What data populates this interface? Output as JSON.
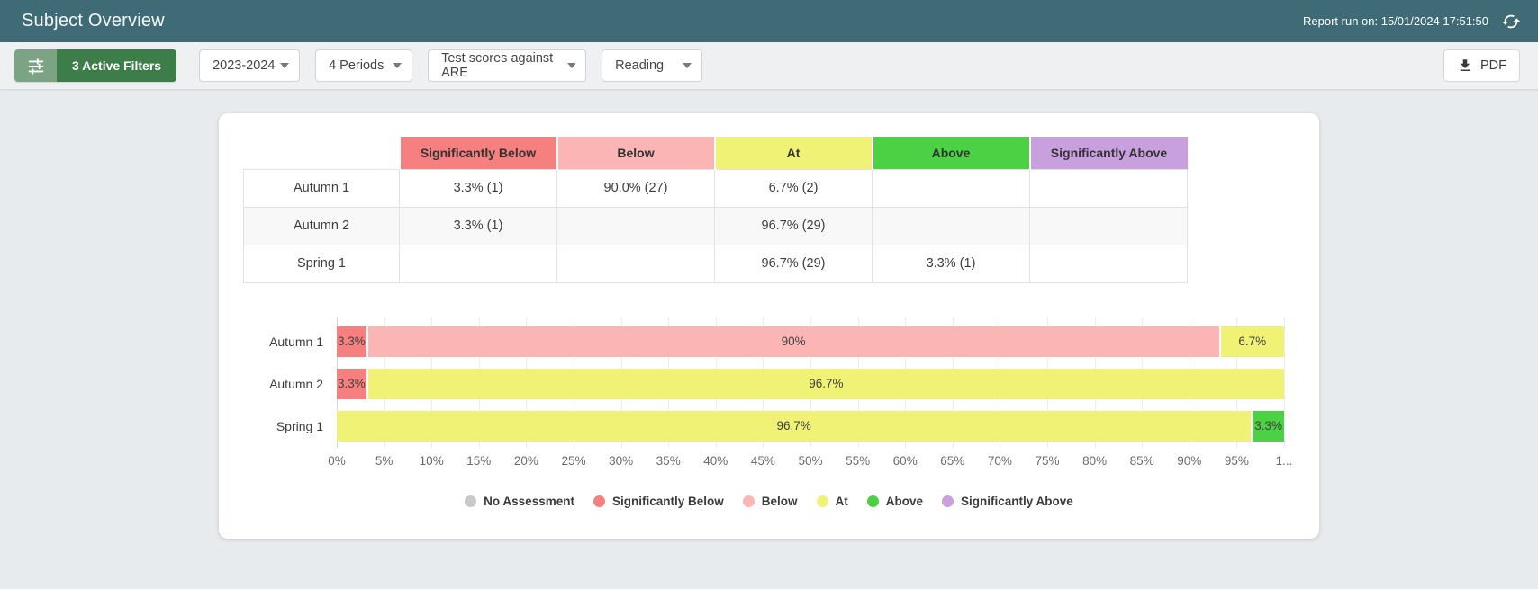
{
  "header": {
    "title": "Subject Overview",
    "report_run": "Report run on: 15/01/2024 17:51:50"
  },
  "toolbar": {
    "active_filters_label": "3 Active Filters",
    "dropdowns": [
      {
        "value": "2023-2024"
      },
      {
        "value": "4 Periods"
      },
      {
        "value": "Test scores against ARE"
      },
      {
        "value": "Reading"
      }
    ],
    "pdf_label": "PDF"
  },
  "colors": {
    "no_assessment": "#c9c9c9",
    "significantly_below": "#f67f7f",
    "below": "#fbb5b5",
    "at": "#f0f275",
    "above": "#4cd044",
    "significantly_above": "#c9a0de",
    "header_teal": "#3f6b76",
    "filter_green_dark": "#3c7d4a",
    "filter_green_light": "#7ba384"
  },
  "table": {
    "columns": [
      {
        "label": "Significantly Below",
        "key": "significantly_below"
      },
      {
        "label": "Below",
        "key": "below"
      },
      {
        "label": "At",
        "key": "at"
      },
      {
        "label": "Above",
        "key": "above"
      },
      {
        "label": "Significantly Above",
        "key": "significantly_above"
      }
    ],
    "rows": [
      {
        "label": "Autumn 1",
        "cells": [
          "3.3% (1)",
          "90.0% (27)",
          "6.7% (2)",
          "",
          ""
        ]
      },
      {
        "label": "Autumn 2",
        "cells": [
          "3.3% (1)",
          "",
          "96.7% (29)",
          "",
          ""
        ]
      },
      {
        "label": "Spring 1",
        "cells": [
          "",
          "",
          "96.7% (29)",
          "3.3% (1)",
          ""
        ]
      }
    ]
  },
  "chart_data": {
    "type": "bar",
    "orientation": "horizontal",
    "stacked": true,
    "title": "",
    "xlabel": "",
    "ylabel": "",
    "xlim": [
      0,
      100
    ],
    "grid": true,
    "legend_position": "bottom",
    "categories": [
      "Autumn 1",
      "Autumn 2",
      "Spring 1"
    ],
    "series": [
      {
        "name": "No Assessment",
        "key": "no_assessment",
        "values": [
          0,
          0,
          0
        ]
      },
      {
        "name": "Significantly Below",
        "key": "significantly_below",
        "values": [
          3.3,
          3.3,
          0
        ]
      },
      {
        "name": "Below",
        "key": "below",
        "values": [
          90.0,
          0,
          0
        ]
      },
      {
        "name": "At",
        "key": "at",
        "values": [
          6.7,
          96.7,
          96.7
        ]
      },
      {
        "name": "Above",
        "key": "above",
        "values": [
          0,
          0,
          3.3
        ]
      },
      {
        "name": "Significantly Above",
        "key": "significantly_above",
        "values": [
          0,
          0,
          0
        ]
      }
    ],
    "rows": [
      {
        "category": "Autumn 1",
        "segments": [
          {
            "key": "significantly_below",
            "value": 3.3,
            "label": "3.3%"
          },
          {
            "key": "below",
            "value": 90.0,
            "label": "90%"
          },
          {
            "key": "at",
            "value": 6.7,
            "label": "6.7%"
          }
        ]
      },
      {
        "category": "Autumn 2",
        "segments": [
          {
            "key": "significantly_below",
            "value": 3.3,
            "label": "3.3%"
          },
          {
            "key": "at",
            "value": 96.7,
            "label": "96.7%"
          }
        ]
      },
      {
        "category": "Spring 1",
        "segments": [
          {
            "key": "at",
            "value": 96.7,
            "label": "96.7%"
          },
          {
            "key": "above",
            "value": 3.3,
            "label": "3.3%"
          }
        ]
      }
    ],
    "x_ticks": [
      "0%",
      "5%",
      "10%",
      "15%",
      "20%",
      "25%",
      "30%",
      "35%",
      "40%",
      "45%",
      "50%",
      "55%",
      "60%",
      "65%",
      "70%",
      "75%",
      "80%",
      "85%",
      "90%",
      "95%",
      "1..."
    ],
    "legend": [
      {
        "label": "No Assessment",
        "key": "no_assessment"
      },
      {
        "label": "Significantly Below",
        "key": "significantly_below"
      },
      {
        "label": "Below",
        "key": "below"
      },
      {
        "label": "At",
        "key": "at"
      },
      {
        "label": "Above",
        "key": "above"
      },
      {
        "label": "Significantly Above",
        "key": "significantly_above"
      }
    ]
  }
}
